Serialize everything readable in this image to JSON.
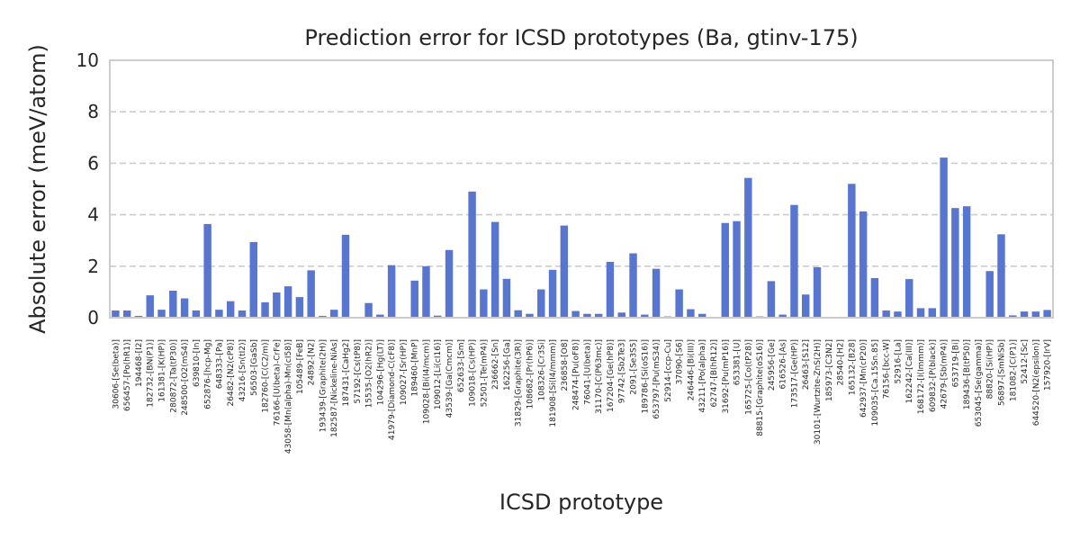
{
  "chart_data": {
    "type": "bar",
    "title": "Prediction error for ICSD prototypes (Ba, gtinv-175)",
    "xlabel": "ICSD prototype",
    "ylabel": "Absolute error (meV/atom)",
    "ylim": [
      0,
      10
    ],
    "yticks": [
      0,
      2,
      4,
      6,
      8,
      10
    ],
    "grid": "horizontal dashed",
    "bar_color": "#5875d0",
    "categories": [
      "30606-[Se(beta)]",
      "656457-[Po(hR1)]",
      "194468-[I2]",
      "182732-[BN(P1)]",
      "161381-[K(HP)]",
      "280872-[Ta(tP30)]",
      "248500-[O2(mS4)]",
      "639810-[In]",
      "652876-[hcp-Mg]",
      "648333-[Pa]",
      "26482-[N2(cP8)]",
      "43216-[Sn(tI2)]",
      "56503-[GaSb]",
      "182760-[C(C2/m)]",
      "76166-[U(beta)-CrFe]",
      "43058-[Mn(alpha)-Mn(cI58)]",
      "105489-[FeB]",
      "24892-[N2]",
      "193439-[Graphite(2H)]",
      "182587-[Nickeline-NiAs]",
      "187431-[CaHg2]",
      "57192-[Cs(tP8)]",
      "15535-[O2(hR2)]",
      "104296-[Hg(LT)]",
      "41979-[Diamond-C(cF8)]",
      "109027-[Sr(HP)]",
      "189460-[MnP]",
      "109028-[Bi(I4/mcm)]",
      "109012-[Li(cI16)]",
      "43539-[Ga(Cmcm)]",
      "652633-[Sm]",
      "109018-[Cs(HP)]",
      "52501-[Te(mP4)]",
      "236662-[Sn]",
      "162256-[Ga]",
      "31829-[Graphite(3R)]",
      "108682-[Pr(hP6)]",
      "108326-[Cr3Si]",
      "181908-[Si(I4/mmm)]",
      "236858-[O8]",
      "248474-[Pu(oF8)]",
      "76041-[U(beta)]",
      "31170-[C(P63mc)]",
      "167204-[Ge(hP8)]",
      "97742-[Sb2Te3]",
      "2091-[Se3S5]",
      "189786-[Si(oS16)]",
      "653797-[Pu(mS34)]",
      "52914-[ccp-Cu]",
      "37090-[S6]",
      "246446-[Bi(III)]",
      "43211-[Po(alpha)]",
      "62747-[B(hR12)]",
      "31692-[Pu(mP16)]",
      "653381-[U]",
      "165725-[Co(tP28)]",
      "88815-[Graphite(oS16)]",
      "245956-[Ge]",
      "616526-[As]",
      "173517-[Ge(HP)]",
      "26463-[S12]",
      "30101-[Wurtzite-ZnS(2H)]",
      "185973-[C3N2]",
      "28540-[H2]",
      "165132-[B28]",
      "642937-[Mn(cP20)]",
      "109035-[Ca.15Sn.85]",
      "76156-[bcc-W]",
      "52916-[La]",
      "162242-[Ca(III)]",
      "168172-[I(Immm)]",
      "609832-[P(black)]",
      "42679-[Sb(mP4)]",
      "653719-[Bi]",
      "189436-[B(tP50)]",
      "653045-[Se(gamma)]",
      "88820-[Si(HP)]",
      "56897-[SmNiSb]",
      "181082-[C(P1)]",
      "52412-[Sc]",
      "644520-[N2(epsilon)]",
      "157920-[IrV]"
    ],
    "values": [
      0.28,
      0.28,
      0.07,
      0.87,
      0.31,
      1.05,
      0.75,
      0.28,
      3.64,
      0.31,
      0.64,
      0.28,
      2.94,
      0.6,
      0.98,
      1.22,
      0.8,
      1.84,
      0.07,
      0.31,
      3.22,
      0.0,
      0.57,
      0.12,
      2.04,
      0.0,
      1.44,
      2.0,
      0.08,
      2.63,
      0.0,
      4.9,
      1.1,
      3.72,
      1.51,
      0.29,
      0.15,
      1.1,
      1.86,
      3.58,
      0.26,
      0.15,
      0.15,
      2.17,
      0.2,
      2.5,
      0.12,
      1.9,
      0.05,
      1.1,
      0.33,
      0.15,
      0.0,
      3.68,
      3.75,
      5.43,
      0.05,
      1.42,
      0.12,
      4.38,
      0.9,
      1.96,
      0.0,
      0.0,
      5.2,
      4.13,
      1.54,
      0.28,
      0.24,
      1.5,
      0.37,
      0.37,
      6.22,
      4.26,
      4.33,
      0.03,
      1.81,
      3.24,
      0.09,
      0.24,
      0.24,
      0.3
    ]
  }
}
